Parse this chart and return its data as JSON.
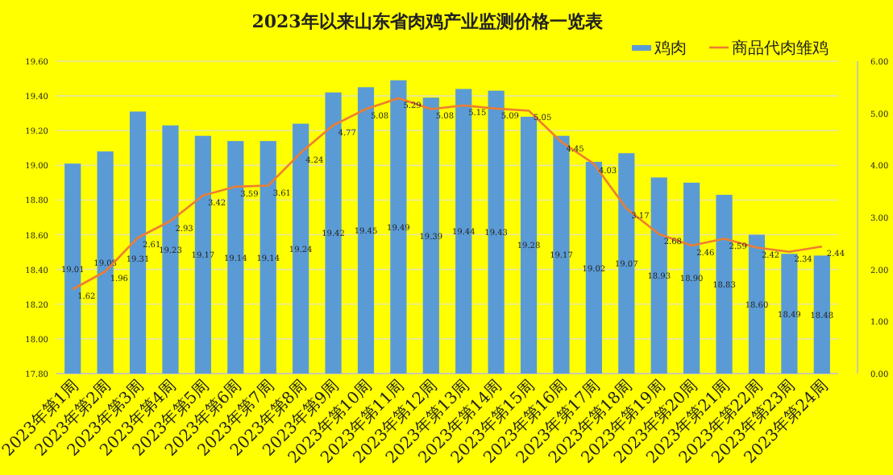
{
  "chart_data": {
    "type": "bar",
    "title": "2023年以来山东省肉鸡产业监测价格一览表",
    "categories": [
      "2023年第1周",
      "2023年第2周",
      "2023年第3周",
      "2023年第4周",
      "2023年第5周",
      "2023年第6周",
      "2023年第7周",
      "2023年第8周",
      "2023年第9周",
      "2023年第10周",
      "2023年第11周",
      "2023年第12周",
      "2023年第13周",
      "2023年第14周",
      "2023年第15周",
      "2023年第16周",
      "2023年第17周",
      "2023年第18周",
      "2023年第19周",
      "2023年第20周",
      "2023年第21周",
      "2023年第22周",
      "2023年第23周",
      "2023年第24周"
    ],
    "series": [
      {
        "name": "鸡肉",
        "color": "#5b9bd5",
        "values": [
          19.01,
          19.08,
          19.31,
          19.23,
          19.17,
          19.14,
          19.14,
          19.24,
          19.42,
          19.45,
          19.49,
          19.39,
          19.44,
          19.43,
          19.28,
          19.17,
          19.02,
          19.07,
          18.93,
          18.9,
          18.83,
          18.6,
          18.49,
          18.48
        ],
        "value_labels": [
          "19.01",
          "19.08",
          "19.31",
          "19.23",
          "19.17",
          "19.14",
          "19.14",
          "19.24",
          "19.42",
          "19.45",
          "19.49",
          "19.39",
          "19.44",
          "19.43",
          "19.28",
          "19.17",
          "19.02",
          "19.07",
          "18.93",
          "18.90",
          "18.83",
          "18.60",
          "18.49",
          "18.48"
        ]
      },
      {
        "name": "商品代肉雏鸡",
        "type": "line",
        "axis": "y2",
        "color": "#ed7d31",
        "values": [
          1.62,
          1.96,
          2.61,
          2.93,
          3.42,
          3.59,
          3.61,
          4.24,
          4.77,
          5.08,
          5.29,
          5.08,
          5.15,
          5.09,
          5.05,
          4.45,
          4.03,
          3.17,
          2.68,
          2.46,
          2.59,
          2.42,
          2.34,
          2.44
        ],
        "value_labels": [
          "1.62",
          "1.96",
          "2.61",
          "2.93",
          "3.42",
          "3.59",
          "3.61",
          "4.24",
          "4.77",
          "5.08",
          "5.29",
          "5.08",
          "5.15",
          "5.09",
          "5.05",
          "4.45",
          "4.03",
          "3.17",
          "2.68",
          "2.46",
          "2.59",
          "2.42",
          "2.34",
          "2.44"
        ]
      }
    ],
    "ylim": [
      17.8,
      19.6
    ],
    "yticks": [
      {
        "value": 17.8,
        "label": "17.80"
      },
      {
        "value": 18.0,
        "label": "18.00"
      },
      {
        "value": 18.2,
        "label": "18.20"
      },
      {
        "value": 18.4,
        "label": "18.40"
      },
      {
        "value": 18.6,
        "label": "18.60"
      },
      {
        "value": 18.8,
        "label": "18.80"
      },
      {
        "value": 19.0,
        "label": "19.00"
      },
      {
        "value": 19.2,
        "label": "19.20"
      },
      {
        "value": 19.4,
        "label": "19.40"
      },
      {
        "value": 19.6,
        "label": "19.60"
      }
    ],
    "y2lim": [
      0,
      6
    ],
    "y2ticks": [
      {
        "value": 0,
        "label": "0.00"
      },
      {
        "value": 1,
        "label": "1.00"
      },
      {
        "value": 2,
        "label": "2.00"
      },
      {
        "value": 3,
        "label": "3.00"
      },
      {
        "value": 4,
        "label": "4.00"
      },
      {
        "value": 5,
        "label": "5.00"
      },
      {
        "value": 6,
        "label": "6.00"
      }
    ],
    "grid": "y",
    "legend": "top right",
    "marker": "none",
    "line_style": "solid"
  }
}
